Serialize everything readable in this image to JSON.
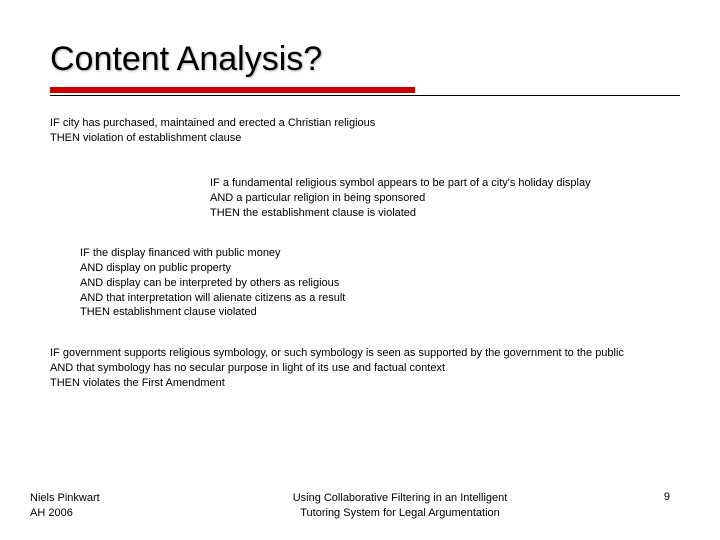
{
  "title": "Content Analysis?",
  "colors": {
    "accent_bar": "#cc0000",
    "rule_line": "#000000",
    "background": "#ffffff",
    "text": "#000000"
  },
  "typography": {
    "title_family": "Verdana",
    "title_size_pt": 26,
    "body_family": "Arial",
    "body_size_pt": 8
  },
  "block1": {
    "l1": "IF city has purchased, maintained and erected a Christian religious",
    "l2": " THEN violation of establishment clause"
  },
  "block2": {
    "l1": "IF a fundamental religious symbol appears to be part of a city's holiday display",
    "l2": " AND a particular religion in being sponsored",
    "l3": " THEN the establishment clause is violated"
  },
  "block3": {
    "l1": "IF the display financed with public money",
    "l2": " AND display on public property",
    "l3": " AND display can be interpreted by others as religious",
    "l4": " AND that interpretation will alienate citizens as a result",
    "l5": " THEN establishment clause violated"
  },
  "block4": {
    "l1": "IF government supports religious symbology, or such symbology is seen as supported by the government to the public",
    "l2": " AND that symbology has no secular purpose in light of its use and factual context",
    "l3": " THEN violates the First Amendment"
  },
  "footer": {
    "author_line1": "Niels Pinkwart",
    "author_line2": "AH 2006",
    "talk_line1": "Using Collaborative Filtering in an Intelligent",
    "talk_line2": "Tutoring System for Legal Argumentation",
    "page": "9"
  }
}
